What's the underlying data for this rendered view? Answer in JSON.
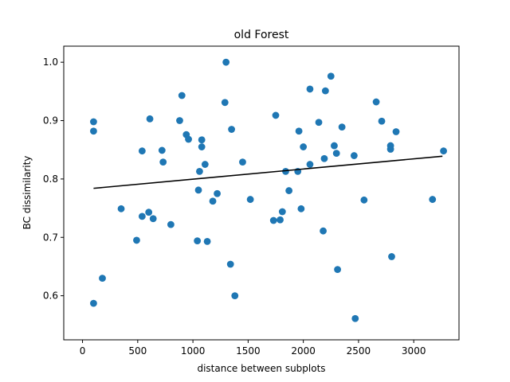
{
  "chart_data": {
    "type": "scatter",
    "title": "old Forest",
    "xlabel": "distance between subplots",
    "ylabel": "BC dissimilarity",
    "xlim": [
      -170,
      3410
    ],
    "ylim": [
      0.5245,
      1.0275
    ],
    "xticks": [
      0,
      500,
      1000,
      1500,
      2000,
      2500,
      3000
    ],
    "yticks": [
      0.6,
      0.7,
      0.8,
      0.9,
      1.0
    ],
    "ytick_labels": [
      "0.6",
      "0.7",
      "0.8",
      "0.9",
      "1.0"
    ],
    "grid": false,
    "marker_color": "#1f77b4",
    "line_color": "#000000",
    "trend_line": {
      "x": [
        100,
        3260
      ],
      "y": [
        0.784,
        0.839
      ]
    },
    "points": [
      [
        100,
        0.898
      ],
      [
        100,
        0.882
      ],
      [
        100,
        0.587
      ],
      [
        180,
        0.63
      ],
      [
        350,
        0.749
      ],
      [
        490,
        0.695
      ],
      [
        540,
        0.848
      ],
      [
        540,
        0.736
      ],
      [
        600,
        0.743
      ],
      [
        610,
        0.903
      ],
      [
        640,
        0.732
      ],
      [
        720,
        0.849
      ],
      [
        730,
        0.829
      ],
      [
        800,
        0.722
      ],
      [
        880,
        0.9
      ],
      [
        900,
        0.943
      ],
      [
        940,
        0.876
      ],
      [
        960,
        0.868
      ],
      [
        1040,
        0.694
      ],
      [
        1050,
        0.781
      ],
      [
        1060,
        0.813
      ],
      [
        1080,
        0.867
      ],
      [
        1080,
        0.855
      ],
      [
        1110,
        0.825
      ],
      [
        1130,
        0.693
      ],
      [
        1180,
        0.762
      ],
      [
        1220,
        0.775
      ],
      [
        1290,
        0.931
      ],
      [
        1300,
        1.0
      ],
      [
        1340,
        0.654
      ],
      [
        1350,
        0.885
      ],
      [
        1380,
        0.6
      ],
      [
        1450,
        0.829
      ],
      [
        1520,
        0.765
      ],
      [
        1730,
        0.729
      ],
      [
        1750,
        0.909
      ],
      [
        1790,
        0.73
      ],
      [
        1810,
        0.744
      ],
      [
        1840,
        0.813
      ],
      [
        1870,
        0.78
      ],
      [
        1950,
        0.813
      ],
      [
        1960,
        0.882
      ],
      [
        1980,
        0.749
      ],
      [
        2000,
        0.855
      ],
      [
        2060,
        0.954
      ],
      [
        2060,
        0.825
      ],
      [
        2140,
        0.897
      ],
      [
        2180,
        0.711
      ],
      [
        2190,
        0.835
      ],
      [
        2200,
        0.951
      ],
      [
        2250,
        0.976
      ],
      [
        2280,
        0.857
      ],
      [
        2300,
        0.844
      ],
      [
        2310,
        0.645
      ],
      [
        2350,
        0.889
      ],
      [
        2460,
        0.84
      ],
      [
        2470,
        0.561
      ],
      [
        2550,
        0.764
      ],
      [
        2660,
        0.932
      ],
      [
        2710,
        0.899
      ],
      [
        2790,
        0.851
      ],
      [
        2790,
        0.857
      ],
      [
        2800,
        0.667
      ],
      [
        2840,
        0.881
      ],
      [
        3170,
        0.765
      ],
      [
        3270,
        0.848
      ]
    ]
  }
}
